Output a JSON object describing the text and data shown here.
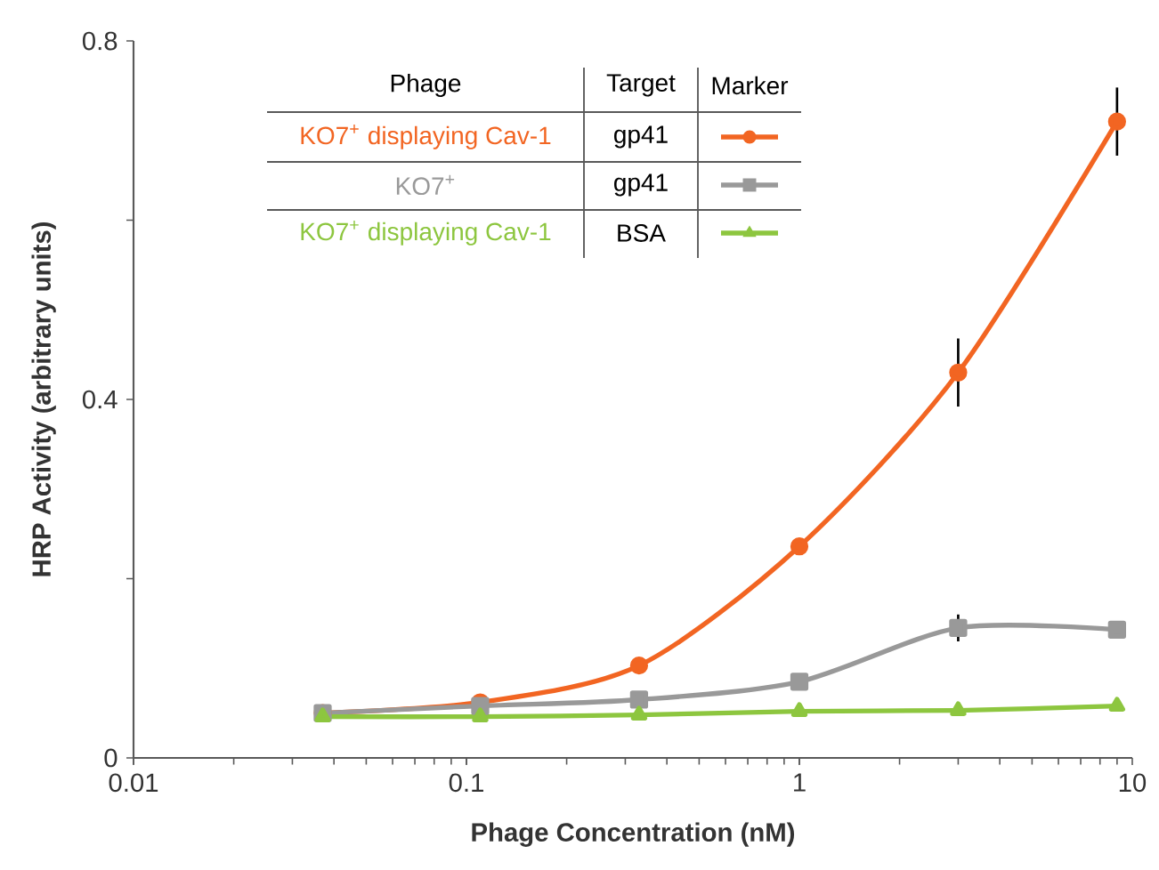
{
  "chart_data": {
    "type": "line",
    "xlabel": "Phage Concentration (nM)",
    "ylabel": "HRP Activity (arbitrary units)",
    "log": "x",
    "xlim": [
      0.01,
      10
    ],
    "xticks": [
      0.01,
      0.1,
      1,
      10
    ],
    "ylim": [
      0,
      0.8
    ],
    "yticks": [
      0,
      {
        "value": 0.2,
        "label": null
      },
      0.4,
      {
        "value": 0.6,
        "label": null
      },
      0.8
    ],
    "grid": false,
    "legend": "top",
    "line_style": "solid",
    "annotations": [
      "Phage",
      "Target",
      "Marker",
      "gp41",
      "gp41",
      "BSA"
    ],
    "series": [
      {
        "name": "KO7$^{+}$ displaying Cav-1",
        "color": "#f26522",
        "marker": "circle",
        "x": [
          0.037,
          0.11,
          0.33,
          1,
          3,
          9
        ],
        "values": [
          0.05,
          0.062,
          0.103,
          0.236,
          0.43,
          0.71
        ],
        "errors": [
          null,
          null,
          null,
          null,
          0.038,
          0.038
        ]
      },
      {
        "name": "KO7$^{+}$",
        "color": "#999999",
        "marker": "square",
        "x": [
          0.037,
          0.11,
          0.33,
          1,
          3,
          9
        ],
        "values": [
          0.05,
          0.058,
          0.065,
          0.085,
          0.145,
          0.143
        ],
        "errors": [
          null,
          null,
          null,
          null,
          0.015,
          null
        ]
      },
      {
        "name": "KO7$^{+}$ displaying Cav-1",
        "color": "#8dc63f",
        "marker": "triangle",
        "x": [
          0.037,
          0.11,
          0.33,
          1,
          3,
          9
        ],
        "values": [
          0.046,
          0.046,
          0.048,
          0.052,
          0.053,
          0.058
        ]
      }
    ]
  }
}
